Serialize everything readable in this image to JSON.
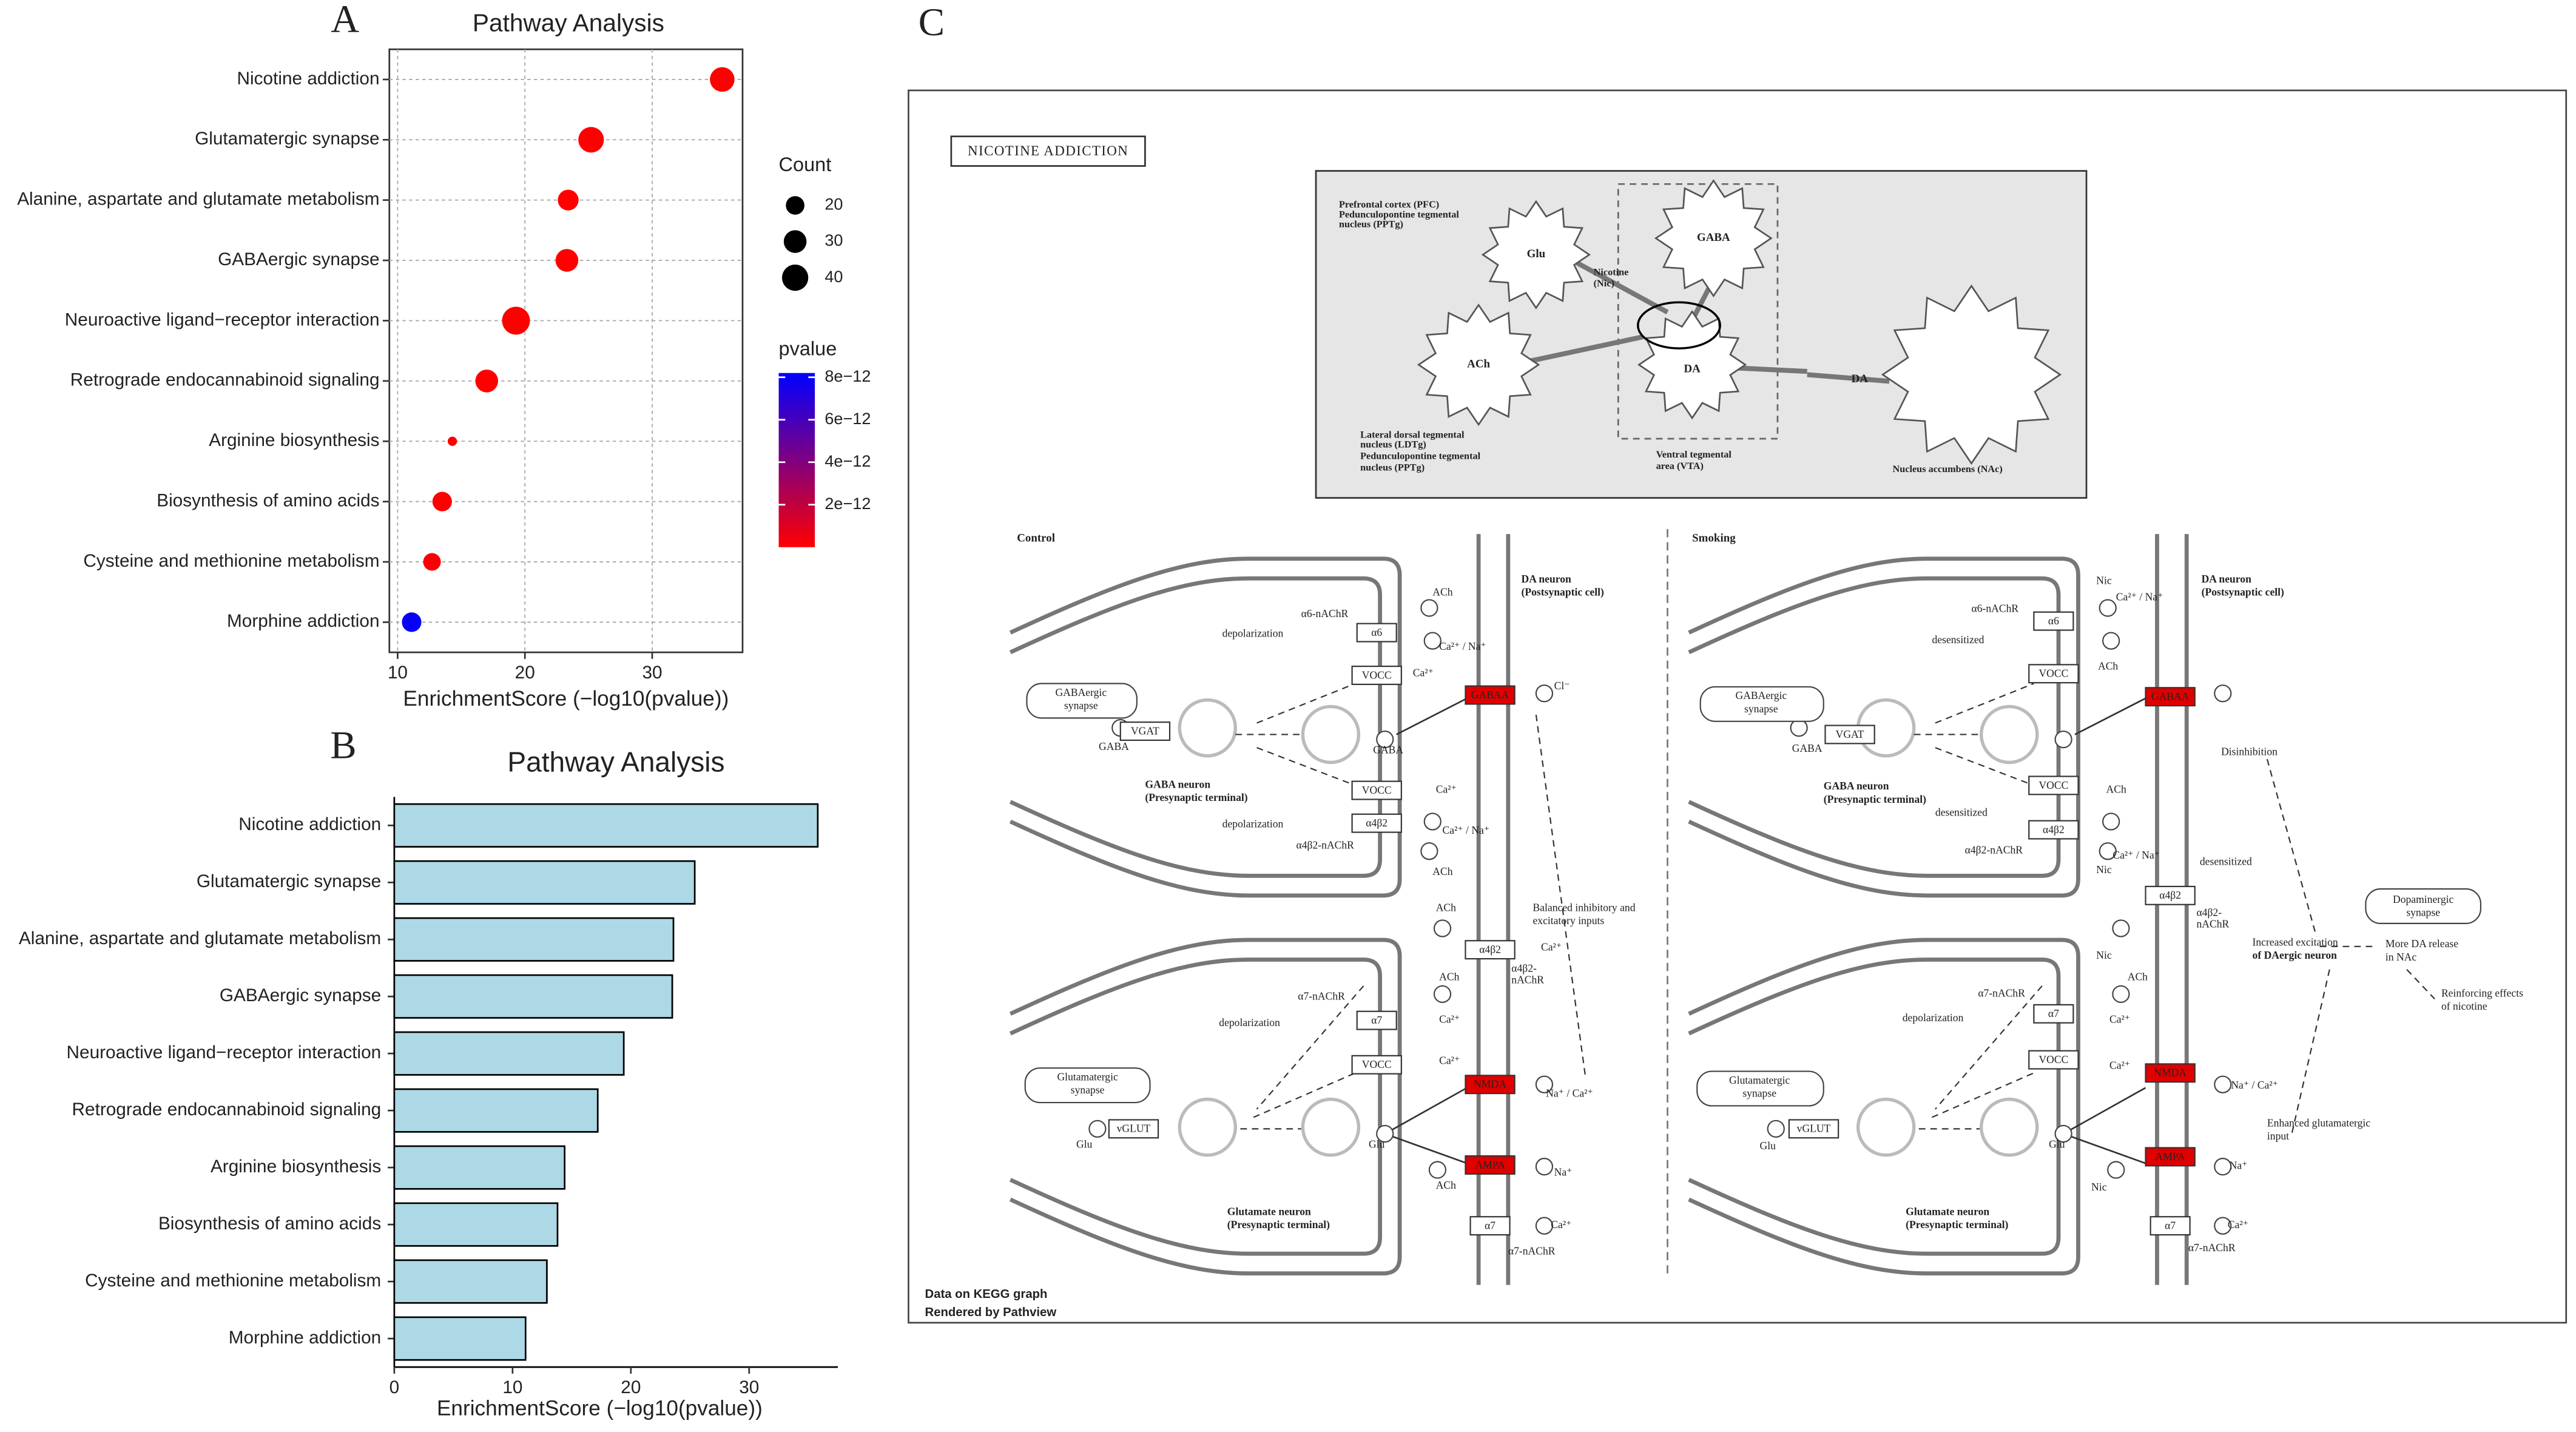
{
  "panels": [
    "A",
    "B",
    "C"
  ],
  "chart_data": [
    {
      "type": "scatter",
      "title": "Pathway Analysis",
      "x_label": "EnrichmentScore (−log10(pvalue))",
      "categories": [
        "Nicotine addiction",
        "Glutamatergic synapse",
        "Alanine, aspartate and glutamate metabolism",
        "GABAergic synapse",
        "Neuroactive ligand−receptor interaction",
        "Retrograde endocannabinoid signaling",
        "Arginine biosynthesis",
        "Biosynthesis of amino acids",
        "Cysteine and methionine metabolism",
        "Morphine addiction"
      ],
      "values": [
        35.5,
        25.2,
        23.4,
        23.3,
        19.3,
        17.0,
        14.3,
        13.5,
        12.7,
        11.1
      ],
      "sizes": [
        35,
        38,
        25,
        30,
        45,
        30,
        5,
        22,
        18,
        22
      ],
      "pvalues": [
        3.2e-36,
        6.3e-26,
        4e-24,
        5e-24,
        5e-20,
        1e-17,
        5e-15,
        3.2e-14,
        2e-13,
        8e-12
      ],
      "xlim": [
        9.35,
        37.1
      ],
      "xticks": [
        10,
        20,
        30
      ],
      "grid": true,
      "size_legend": {
        "title": "Count",
        "values": [
          20,
          30,
          40
        ]
      },
      "color_legend": {
        "title": "pvalue",
        "lim": [
          0,
          8.2e-12
        ],
        "low_color": "#ff0000",
        "high_color": "#0000ff",
        "ticks": [
          {
            "value": 8e-12,
            "label": "8e−12"
          },
          {
            "value": 6e-12,
            "label": "6e−12"
          },
          {
            "value": 4e-12,
            "label": "4e−12"
          },
          {
            "value": 2e-12,
            "label": "2e−12"
          }
        ]
      }
    },
    {
      "type": "bar",
      "title": "Pathway Analysis",
      "x_label": "EnrichmentScore (−log10(pvalue))",
      "categories": [
        "Nicotine addiction",
        "Glutamatergic synapse",
        "Alanine, aspartate and glutamate metabolism",
        "GABAergic synapse",
        "Neuroactive ligand−receptor interaction",
        "Retrograde endocannabinoid signaling",
        "Arginine biosynthesis",
        "Biosynthesis of amino acids",
        "Cysteine and methionine metabolism",
        "Morphine addiction"
      ],
      "values": [
        35.8,
        25.4,
        23.6,
        23.5,
        19.4,
        17.2,
        14.4,
        13.8,
        12.9,
        11.1
      ],
      "color": "#add8e6",
      "xlim": [
        0,
        37.5
      ],
      "xticks": [
        0,
        10,
        20,
        30
      ]
    }
  ],
  "diagram": {
    "title": "NICOTINE ADDICTION",
    "highlight_color": "#e00000",
    "inset_labels": [
      "Prefrontal cortex (PFC)",
      "Pedunculopontine tegmental",
      "nucleus (PPTg)",
      "Glu",
      "Nicotine",
      "(Nic)",
      "GABA",
      "ACh",
      "DA",
      "DA",
      "Lateral dorsal tegmental",
      "nucleus (LDTg)",
      "Pedunculopontine tegmental",
      "nucleus (PPTg)",
      "Ventral tegmental",
      "area (VTA)",
      "Nucleus accumbens (NAc)"
    ],
    "sections": [
      "Control",
      "Smoking"
    ],
    "control": {
      "boxes": [
        {
          "label": "VGAT",
          "active": false
        },
        {
          "label": "α6",
          "active": false
        },
        {
          "label": "VOCC",
          "active": false
        },
        {
          "label": "GABAA",
          "active": true
        },
        {
          "label": "VOCC",
          "active": false
        },
        {
          "label": "α4β2",
          "active": false
        },
        {
          "label": "α4β2",
          "active": false
        },
        {
          "label": "α7",
          "active": false
        },
        {
          "label": "VOCC",
          "active": false
        },
        {
          "label": "vGLUT",
          "active": false
        },
        {
          "label": "NMDA",
          "active": true
        },
        {
          "label": "AMPA",
          "active": true
        },
        {
          "label": "α7",
          "active": false
        }
      ],
      "labels": [
        "DA neuron",
        "(Postsynaptic cell)",
        "α6-nAChR",
        "depolarization",
        "GABAergic",
        "synapse",
        "GABA",
        "GABA",
        "GABA neuron",
        "(Presynaptic terminal)",
        "depolarization",
        "α4β2-nAChR",
        "Balanced inhibitory and",
        "excitatory inputs",
        "α4β2-",
        "nAChR",
        "α7-nAChR",
        "depolarization",
        "Glutamatergic",
        "synapse",
        "Glu",
        "Glu",
        "Glutamate neuron",
        "(Presynaptic terminal)",
        "α7-nAChR",
        "ACh",
        "ACh",
        "ACh",
        "ACh",
        "ACh",
        "Ca²⁺ / Na⁺",
        "Ca²⁺",
        "Cl⁻",
        "Ca²⁺",
        "Ca²⁺ / Na⁺",
        "Ca²⁺",
        "Ca²⁺",
        "Ca²⁺",
        "Na⁺ / Ca²⁺",
        "Na⁺",
        "Ca²⁺"
      ]
    },
    "smoking": {
      "boxes": [
        {
          "label": "VGAT",
          "active": false
        },
        {
          "label": "α6",
          "active": false
        },
        {
          "label": "VOCC",
          "active": false
        },
        {
          "label": "GABAA",
          "active": true
        },
        {
          "label": "VOCC",
          "active": false
        },
        {
          "label": "α4β2",
          "active": false
        },
        {
          "label": "α4β2",
          "active": false
        },
        {
          "label": "α7",
          "active": false
        },
        {
          "label": "VOCC",
          "active": false
        },
        {
          "label": "vGLUT",
          "active": false
        },
        {
          "label": "NMDA",
          "active": true
        },
        {
          "label": "AMPA",
          "active": true
        },
        {
          "label": "α7",
          "active": false
        }
      ],
      "labels": [
        "DA neuron",
        "(Postsynaptic cell)",
        "α6-nAChR",
        "desensitized",
        "GABAergic",
        "synapse",
        "GABA",
        "GABA neuron",
        "(Presynaptic terminal)",
        "desensitized",
        "α4β2-nAChR",
        "Disinhibition",
        "desensitized",
        "α4β2-",
        "nAChR",
        "Dopaminergic",
        "synapse",
        "Increased excitation",
        "of DAergic neuron",
        "More DA release",
        "in NAc",
        "Reinforcing effects",
        "of nicotine",
        "α7-nAChR",
        "depolarization",
        "Glutamatergic",
        "synapse",
        "Glu",
        "Glu",
        "Enhanced glutamatergic",
        "input",
        "Glutamate neuron",
        "(Presynaptic terminal)",
        "α7-nAChR",
        "Nic",
        "ACh",
        "ACh",
        "Nic",
        "Nic",
        "ACh",
        "Nic",
        "Ca²⁺ / Na⁺",
        "Ca²⁺ / Na⁺",
        "Ca²⁺",
        "Ca²⁺",
        "Na⁺ / Ca²⁺",
        "Na⁺",
        "Ca²⁺"
      ]
    },
    "footer": [
      "Data on KEGG graph",
      "Rendered by Pathview"
    ]
  }
}
